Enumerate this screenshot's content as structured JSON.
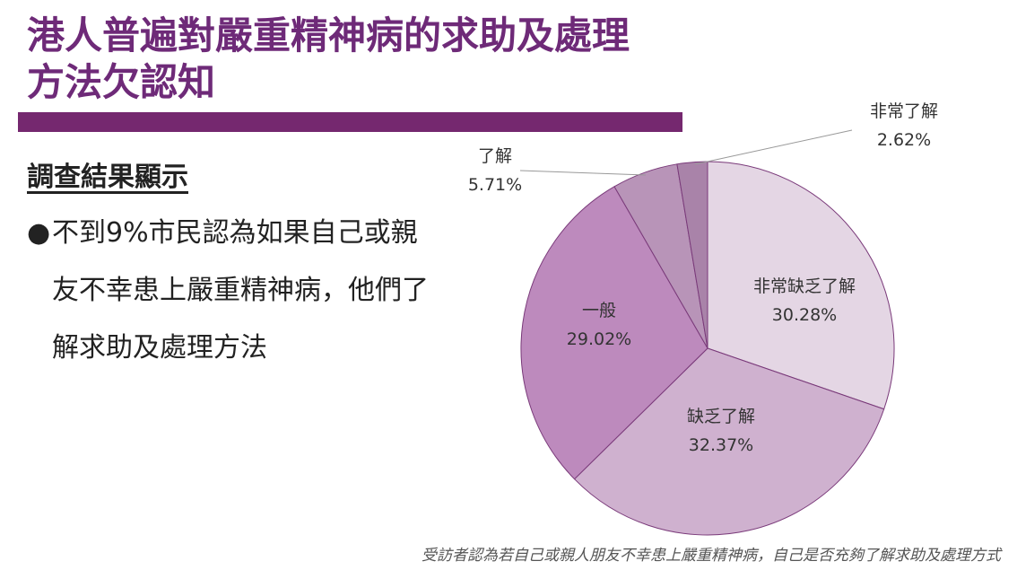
{
  "slide": {
    "title_line1": "港人普遍對嚴重精神病的求助及處理",
    "title_line2": "方法欠認知",
    "subheading": "調查結果顯示",
    "bullet": "不到9%市民認為如果自己或親友不幸患上嚴重精神病，他們了解求助及處理方法",
    "bullet_marker": "●",
    "footnote": "受訪者認為若自己或親人朋友不幸患上嚴重精神病，自己是否充夠了解求助及處理方式",
    "accent_color": "#75286f"
  },
  "chart_data": {
    "type": "pie",
    "start": "12 o'clock, clockwise",
    "slices": [
      {
        "label": "非常缺乏了解",
        "value": 30.28,
        "display": "30.28%",
        "color": "#e4d6e4"
      },
      {
        "label": "缺乏了解",
        "value": 32.37,
        "display": "32.37%",
        "color": "#cfb1cf"
      },
      {
        "label": "一般",
        "value": 29.02,
        "display": "29.02%",
        "color": "#bd8abd"
      },
      {
        "label": "了解",
        "value": 5.71,
        "display": "5.71%",
        "color": "#b894b8"
      },
      {
        "label": "非常了解",
        "value": 2.62,
        "display": "2.62%",
        "color": "#a983a9"
      }
    ]
  }
}
